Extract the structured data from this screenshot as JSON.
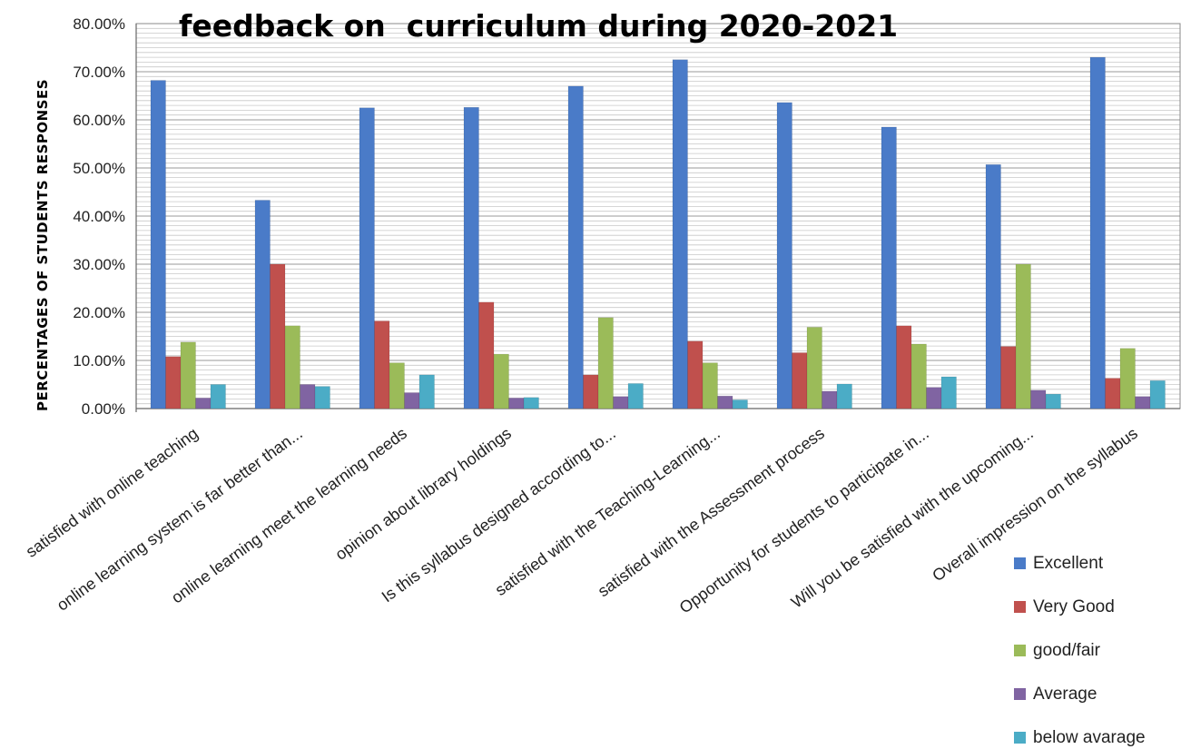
{
  "chart_data": {
    "type": "bar",
    "title": "feedback on  curriculum during 2020-2021",
    "xlabel": "",
    "ylabel": "PERCENTAGES  OF STUDENTS RESPONSES",
    "ylim": [
      0,
      80
    ],
    "yticks": [
      "0.00%",
      "10.00%",
      "20.00%",
      "30.00%",
      "40.00%",
      "50.00%",
      "60.00%",
      "70.00%",
      "80.00%"
    ],
    "grid": true,
    "legend_position": "bottom-right",
    "categories": [
      "satisfied with online teaching",
      "online learning system is far better than...",
      "online learning meet the learning needs",
      "opinion about library holdings",
      "Is this syllabus designed according to...",
      "satisfied with the Teaching-Learning...",
      "satisfied with the Assessment process",
      "Opportunity for students to participate in...",
      "Will you be satisfied with the upcoming...",
      "Overall impression on the syllabus"
    ],
    "series": [
      {
        "name": "Excellent",
        "color": "#4a7bc8",
        "values": [
          68.2,
          43.3,
          62.5,
          62.6,
          67.0,
          72.5,
          63.6,
          58.5,
          50.7,
          73.0
        ]
      },
      {
        "name": "Very Good",
        "color": "#c0504d",
        "values": [
          10.8,
          30.0,
          18.2,
          22.1,
          7.0,
          14.0,
          11.6,
          17.2,
          12.9,
          6.3
        ]
      },
      {
        "name": "good/fair",
        "color": "#9bbb59",
        "values": [
          13.8,
          17.2,
          9.5,
          11.3,
          18.9,
          9.5,
          16.9,
          13.4,
          30.0,
          12.5
        ]
      },
      {
        "name": "Average",
        "color": "#8064a2",
        "values": [
          2.2,
          5.0,
          3.3,
          2.2,
          2.5,
          2.6,
          3.6,
          4.4,
          3.8,
          2.5
        ]
      },
      {
        "name": "below avarage",
        "color": "#4bacc6",
        "values": [
          5.0,
          4.6,
          7.0,
          2.3,
          5.2,
          1.8,
          5.1,
          6.6,
          3.0,
          5.8
        ]
      }
    ]
  }
}
